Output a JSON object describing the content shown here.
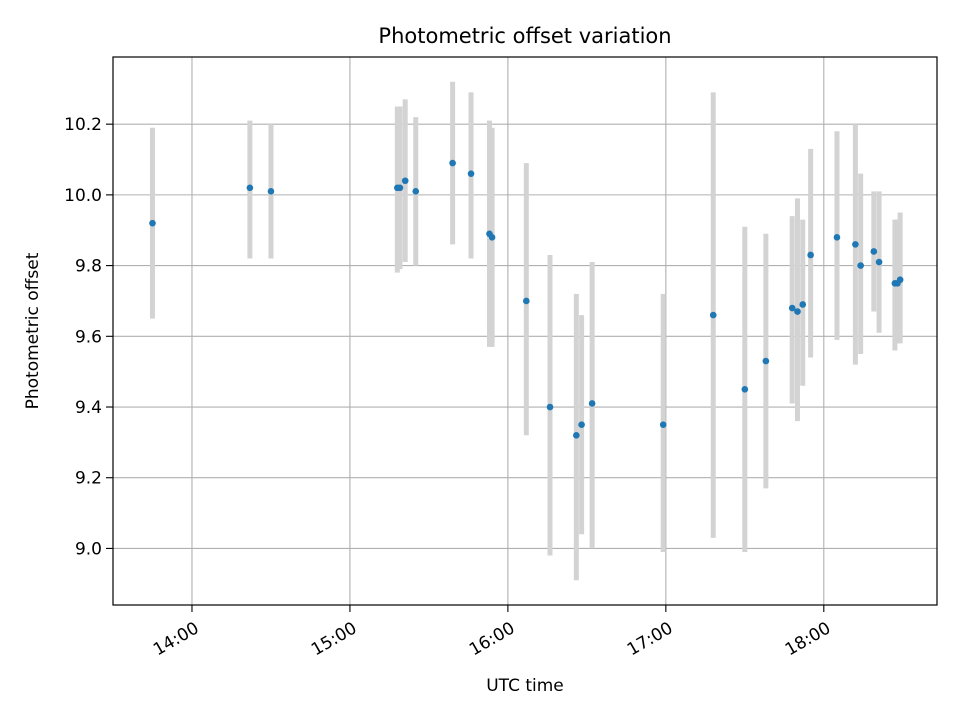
{
  "chart_data": {
    "type": "scatter",
    "title": "Photometric offset variation",
    "xlabel": "UTC time",
    "ylabel": "Photometric offset",
    "x_ticks": [
      "14:00",
      "15:00",
      "16:00",
      "17:00",
      "18:00"
    ],
    "y_ticks": [
      "9.0",
      "9.2",
      "9.4",
      "9.6",
      "9.8",
      "10.0",
      "10.2"
    ],
    "xlim": [
      "13:30",
      "18:43"
    ],
    "ylim": [
      8.84,
      10.39
    ],
    "grid": true,
    "point_color": "#1f77b4",
    "errorbar_color": "#d3d3d3",
    "points": [
      {
        "x": "13:45",
        "y": 9.92,
        "low": 9.65,
        "high": 10.19
      },
      {
        "x": "14:22",
        "y": 10.02,
        "low": 9.82,
        "high": 10.21
      },
      {
        "x": "14:30",
        "y": 10.01,
        "low": 9.82,
        "high": 10.2
      },
      {
        "x": "15:18",
        "y": 10.02,
        "low": 9.78,
        "high": 10.25
      },
      {
        "x": "15:19",
        "y": 10.02,
        "low": 9.79,
        "high": 10.25
      },
      {
        "x": "15:21",
        "y": 10.04,
        "low": 9.81,
        "high": 10.27
      },
      {
        "x": "15:25",
        "y": 10.01,
        "low": 9.8,
        "high": 10.22
      },
      {
        "x": "15:39",
        "y": 10.09,
        "low": 9.86,
        "high": 10.32
      },
      {
        "x": "15:46",
        "y": 10.06,
        "low": 9.82,
        "high": 10.29
      },
      {
        "x": "15:53",
        "y": 9.89,
        "low": 9.57,
        "high": 10.21
      },
      {
        "x": "15:54",
        "y": 9.88,
        "low": 9.57,
        "high": 10.19
      },
      {
        "x": "16:07",
        "y": 9.7,
        "low": 9.32,
        "high": 10.09
      },
      {
        "x": "16:16",
        "y": 9.4,
        "low": 8.98,
        "high": 9.83
      },
      {
        "x": "16:26",
        "y": 9.32,
        "low": 8.91,
        "high": 9.72
      },
      {
        "x": "16:28",
        "y": 9.35,
        "low": 9.04,
        "high": 9.66
      },
      {
        "x": "16:32",
        "y": 9.41,
        "low": 9.0,
        "high": 9.81
      },
      {
        "x": "16:59",
        "y": 9.35,
        "low": 8.99,
        "high": 9.72
      },
      {
        "x": "17:18",
        "y": 9.66,
        "low": 9.03,
        "high": 10.29
      },
      {
        "x": "17:30",
        "y": 9.45,
        "low": 8.99,
        "high": 9.91
      },
      {
        "x": "17:38",
        "y": 9.53,
        "low": 9.17,
        "high": 9.89
      },
      {
        "x": "17:48",
        "y": 9.68,
        "low": 9.41,
        "high": 9.94
      },
      {
        "x": "17:50",
        "y": 9.67,
        "low": 9.36,
        "high": 9.99
      },
      {
        "x": "17:52",
        "y": 9.69,
        "low": 9.46,
        "high": 9.93
      },
      {
        "x": "17:55",
        "y": 9.83,
        "low": 9.54,
        "high": 10.13
      },
      {
        "x": "18:05",
        "y": 9.88,
        "low": 9.59,
        "high": 10.18
      },
      {
        "x": "18:12",
        "y": 9.86,
        "low": 9.52,
        "high": 10.2
      },
      {
        "x": "18:14",
        "y": 9.8,
        "low": 9.55,
        "high": 10.06
      },
      {
        "x": "18:19",
        "y": 9.84,
        "low": 9.67,
        "high": 10.01
      },
      {
        "x": "18:21",
        "y": 9.81,
        "low": 9.61,
        "high": 10.01
      },
      {
        "x": "18:27",
        "y": 9.75,
        "low": 9.56,
        "high": 9.93
      },
      {
        "x": "18:28",
        "y": 9.75,
        "low": 9.58,
        "high": 9.93
      },
      {
        "x": "18:29",
        "y": 9.76,
        "low": 9.58,
        "high": 9.95
      }
    ]
  }
}
